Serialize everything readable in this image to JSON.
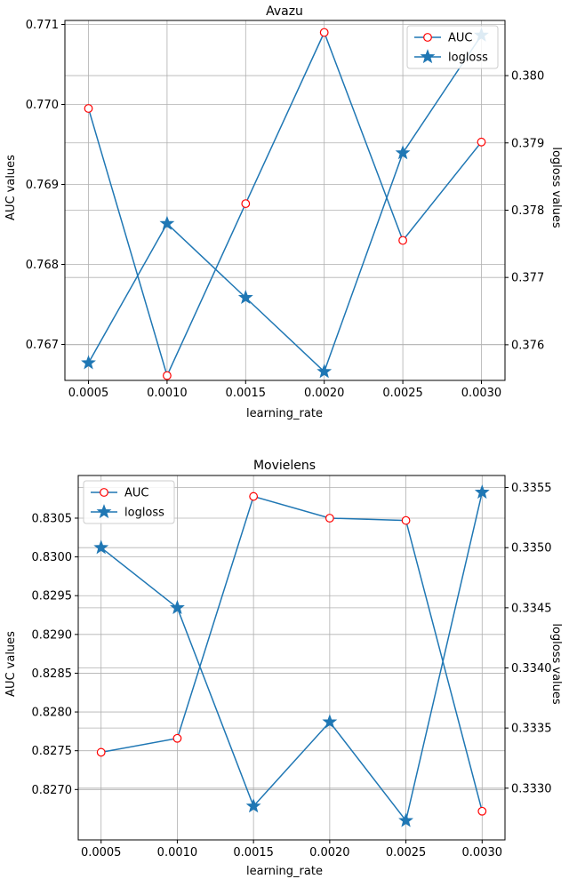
{
  "colors": {
    "line": "#1f77b4",
    "auc_marker_edge": "#ff0000",
    "grid": "#b0b0b0",
    "legend_border": "#cccccc"
  },
  "chart_data": [
    {
      "type": "line",
      "title": "Avazu",
      "xlabel": "learning_rate",
      "ylabel_left": "AUC values",
      "ylabel_right": "logloss values",
      "x": [
        0.0005,
        0.001,
        0.0015,
        0.002,
        0.0025,
        0.003
      ],
      "x_tick_labels": [
        "0.0005",
        "0.0010",
        "0.0015",
        "0.0020",
        "0.0025",
        "0.0030"
      ],
      "grid": true,
      "legend_position": "top-right",
      "axes": {
        "left": {
          "range": [
            0.76655,
            0.77105
          ],
          "ticks": [
            0.767,
            0.768,
            0.769,
            0.77,
            0.771
          ],
          "tick_labels": [
            "0.767",
            "0.768",
            "0.769",
            "0.770",
            "0.771"
          ]
        },
        "right": {
          "range": [
            0.37547,
            0.38082
          ],
          "ticks": [
            0.376,
            0.377,
            0.378,
            0.379,
            0.38
          ],
          "tick_labels": [
            "0.376",
            "0.377",
            "0.378",
            "0.379",
            "0.380"
          ]
        }
      },
      "series": [
        {
          "name": "AUC",
          "axis": "left",
          "marker": "circle",
          "values": [
            0.76995,
            0.76661,
            0.76876,
            0.7709,
            0.7683,
            0.76953
          ]
        },
        {
          "name": "logloss",
          "axis": "right",
          "marker": "star",
          "values": [
            0.37573,
            0.3778,
            0.3767,
            0.3756,
            0.37885,
            0.3806
          ]
        }
      ]
    },
    {
      "type": "line",
      "title": "Movielens",
      "xlabel": "learning_rate",
      "ylabel_left": "AUC values",
      "ylabel_right": "logloss values",
      "x": [
        0.0005,
        0.001,
        0.0015,
        0.002,
        0.0025,
        0.003
      ],
      "x_tick_labels": [
        "0.0005",
        "0.0010",
        "0.0015",
        "0.0020",
        "0.0025",
        "0.0030"
      ],
      "grid": true,
      "legend_position": "top-left",
      "axes": {
        "left": {
          "range": [
            0.82635,
            0.83105
          ],
          "ticks": [
            0.827,
            0.8275,
            0.828,
            0.8285,
            0.829,
            0.8295,
            0.83,
            0.8305
          ],
          "tick_labels": [
            "0.8270",
            "0.8275",
            "0.8280",
            "0.8285",
            "0.8290",
            "0.8295",
            "0.8300",
            "0.8305"
          ]
        },
        "right": {
          "range": [
            0.33257,
            0.3356
          ],
          "ticks": [
            0.333,
            0.3335,
            0.334,
            0.3345,
            0.335,
            0.3355
          ],
          "tick_labels": [
            "0.3330",
            "0.3335",
            "0.3340",
            "0.3345",
            "0.3350",
            "0.3355"
          ]
        }
      },
      "series": [
        {
          "name": "AUC",
          "axis": "left",
          "marker": "circle",
          "values": [
            0.82748,
            0.82766,
            0.83078,
            0.8305,
            0.83047,
            0.82672
          ]
        },
        {
          "name": "logloss",
          "axis": "right",
          "marker": "star",
          "values": [
            0.335,
            0.3345,
            0.33285,
            0.33355,
            0.33273,
            0.33546
          ]
        }
      ]
    }
  ]
}
